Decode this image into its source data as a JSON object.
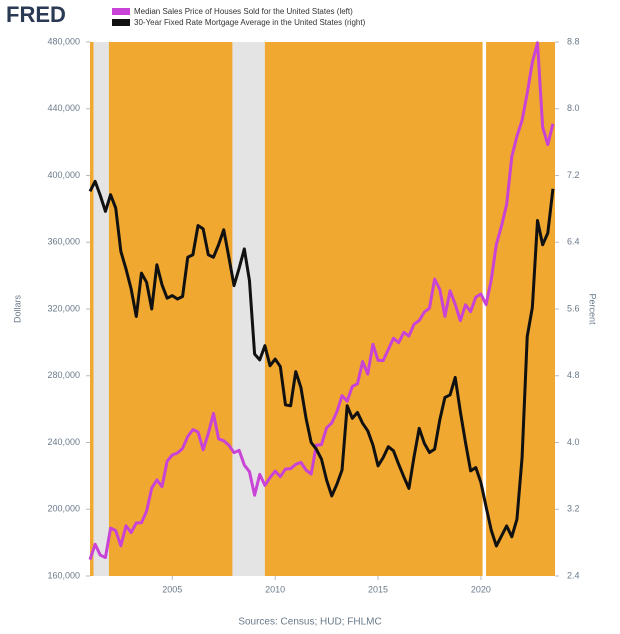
{
  "chart_data": {
    "type": "line",
    "logo": "FRED",
    "source": "Sources: Census; HUD; FHLMC",
    "ylabel": "Dollars",
    "y2label": "Percent",
    "background_color": "#f0a830",
    "recession_color": "#e4e4e4",
    "recessions": [
      [
        2001.17,
        2001.92
      ],
      [
        2007.92,
        2009.5
      ],
      [
        2020.08,
        2020.25
      ]
    ],
    "x": [
      2001,
      2001.25,
      2001.5,
      2001.75,
      2002,
      2002.25,
      2002.5,
      2002.75,
      2003,
      2003.25,
      2003.5,
      2003.75,
      2004,
      2004.25,
      2004.5,
      2004.75,
      2005,
      2005.25,
      2005.5,
      2005.75,
      2006,
      2006.25,
      2006.5,
      2006.75,
      2007,
      2007.25,
      2007.5,
      2007.75,
      2008,
      2008.25,
      2008.5,
      2008.75,
      2009,
      2009.25,
      2009.5,
      2009.75,
      2010,
      2010.25,
      2010.5,
      2010.75,
      2011,
      2011.25,
      2011.5,
      2011.75,
      2012,
      2012.25,
      2012.5,
      2012.75,
      2013,
      2013.25,
      2013.5,
      2013.75,
      2014,
      2014.25,
      2014.5,
      2014.75,
      2015,
      2015.25,
      2015.5,
      2015.75,
      2016,
      2016.25,
      2016.5,
      2016.75,
      2017,
      2017.25,
      2017.5,
      2017.75,
      2018,
      2018.25,
      2018.5,
      2018.75,
      2019,
      2019.25,
      2019.5,
      2019.75,
      2020,
      2020.25,
      2020.5,
      2020.75,
      2021,
      2021.25,
      2021.5,
      2021.75,
      2022,
      2022.25,
      2022.5,
      2022.75,
      2023,
      2023.25,
      2023.5
    ],
    "series": [
      {
        "name": "Median Sales Price of Houses Sold for the United States (left)",
        "color": "#c843d6",
        "axis": "y",
        "values": [
          169800,
          179000,
          172500,
          171100,
          188700,
          187200,
          178100,
          190100,
          186000,
          191800,
          191900,
          198800,
          212700,
          217600,
          213500,
          228800,
          232500,
          233700,
          236400,
          243600,
          247700,
          246300,
          235600,
          245400,
          257400,
          242200,
          241000,
          238400,
          233900,
          235300,
          226500,
          222500,
          208400,
          220900,
          214300,
          219000,
          222900,
          219500,
          224100,
          224300,
          226900,
          228100,
          223500,
          221100,
          238400,
          238700,
          248800,
          251700,
          258400,
          268100,
          264800,
          273600,
          275200,
          288500,
          281000,
          298900,
          289200,
          289100,
          295800,
          302500,
          299800,
          306000,
          303800,
          310900,
          313100,
          318200,
          320500,
          337900,
          331800,
          315600,
          330900,
          322800,
          313000,
          322500,
          318400,
          327100,
          329000,
          322600,
          337500,
          358700,
          369800,
          382600,
          411200,
          423600,
          433100,
          449300,
          468000,
          479500,
          429000,
          418500,
          431000
        ]
      },
      {
        "name": "30-Year Fixed Rate Mortgage Average in the United States (right)",
        "color": "#111111",
        "axis": "y2",
        "values": [
          7.01,
          7.13,
          6.96,
          6.77,
          6.97,
          6.81,
          6.29,
          6.08,
          5.84,
          5.51,
          6.03,
          5.92,
          5.6,
          6.13,
          5.89,
          5.73,
          5.76,
          5.72,
          5.75,
          6.22,
          6.25,
          6.6,
          6.56,
          6.25,
          6.22,
          6.37,
          6.55,
          6.22,
          5.88,
          6.09,
          6.32,
          5.94,
          5.06,
          4.99,
          5.16,
          4.92,
          5.0,
          4.91,
          4.45,
          4.44,
          4.85,
          4.66,
          4.29,
          4.0,
          3.92,
          3.8,
          3.55,
          3.36,
          3.5,
          3.67,
          4.44,
          4.29,
          4.36,
          4.23,
          4.14,
          3.97,
          3.72,
          3.82,
          3.95,
          3.9,
          3.74,
          3.59,
          3.45,
          3.83,
          4.17,
          3.99,
          3.88,
          3.92,
          4.27,
          4.54,
          4.57,
          4.78,
          4.37,
          4.0,
          3.66,
          3.7,
          3.52,
          3.23,
          2.95,
          2.76,
          2.88,
          3.0,
          2.87,
          3.08,
          3.82,
          5.27,
          5.62,
          6.66,
          6.37,
          6.51,
          7.04
        ]
      }
    ],
    "xlim": [
      2001,
      2023.6
    ],
    "xticks": [
      2005,
      2010,
      2015,
      2020
    ],
    "ylim": [
      160000,
      480000
    ],
    "yticks": [
      {
        "value": 160000,
        "label": "160,000"
      },
      {
        "value": 200000,
        "label": "200,000"
      },
      {
        "value": 240000,
        "label": "240,000"
      },
      {
        "value": 280000,
        "label": "280,000"
      },
      {
        "value": 320000,
        "label": "320,000"
      },
      {
        "value": 360000,
        "label": "360,000"
      },
      {
        "value": 400000,
        "label": "400,000"
      },
      {
        "value": 440000,
        "label": "440,000"
      },
      {
        "value": 480000,
        "label": "480,000"
      }
    ],
    "y2lim": [
      2.4,
      8.8
    ],
    "y2ticks": [
      2.4,
      3.2,
      {
        "value": 4.0,
        "label": "4.0"
      },
      4.8,
      5.6,
      6.4,
      7.2,
      {
        "value": 8.0,
        "label": "8.0"
      },
      8.8
    ]
  }
}
